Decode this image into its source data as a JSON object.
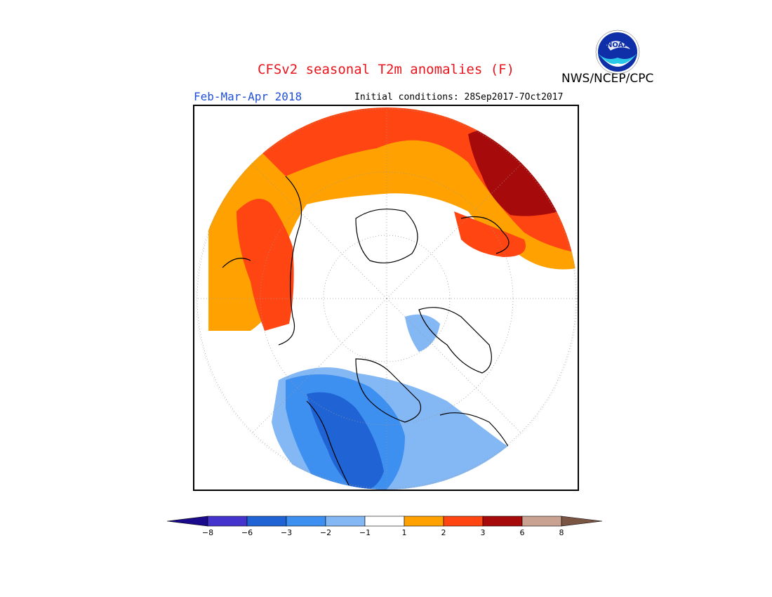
{
  "header": {
    "title": "CFSv2 seasonal T2m anomalies (F)",
    "season": "Feb-Mar-Apr 2018",
    "initial_conditions": "Initial conditions: 28Sep2017-7Oct2017",
    "agency": "NWS/NCEP/CPC",
    "logo_text": "NOAA"
  },
  "legend": {
    "colors": [
      "#1a0a8c",
      "#4433cc",
      "#1f63d4",
      "#3d8ff0",
      "#84b8f5",
      "#ffffff",
      "#ffa100",
      "#ff4512",
      "#a60a0a",
      "#c9a291",
      "#7a5544"
    ],
    "ticks": [
      "−8",
      "−6",
      "−3",
      "−2",
      "−1",
      "1",
      "2",
      "3",
      "6",
      "8"
    ]
  },
  "map": {
    "projection": "north polar stereographic",
    "regions": [
      {
        "name": "asia-europe-warm-belt",
        "category": "1 to 2"
      },
      {
        "name": "siberia-strong-warm",
        "category": "2 to 3"
      },
      {
        "name": "northeast-siberia-extreme-warm",
        "category": "3 to 6"
      },
      {
        "name": "canada-cold",
        "category": "-3 to -2"
      },
      {
        "name": "western-canada-colder",
        "category": "-6 to -3"
      },
      {
        "name": "greenland-cold-patch",
        "category": "-2 to -1"
      }
    ]
  }
}
